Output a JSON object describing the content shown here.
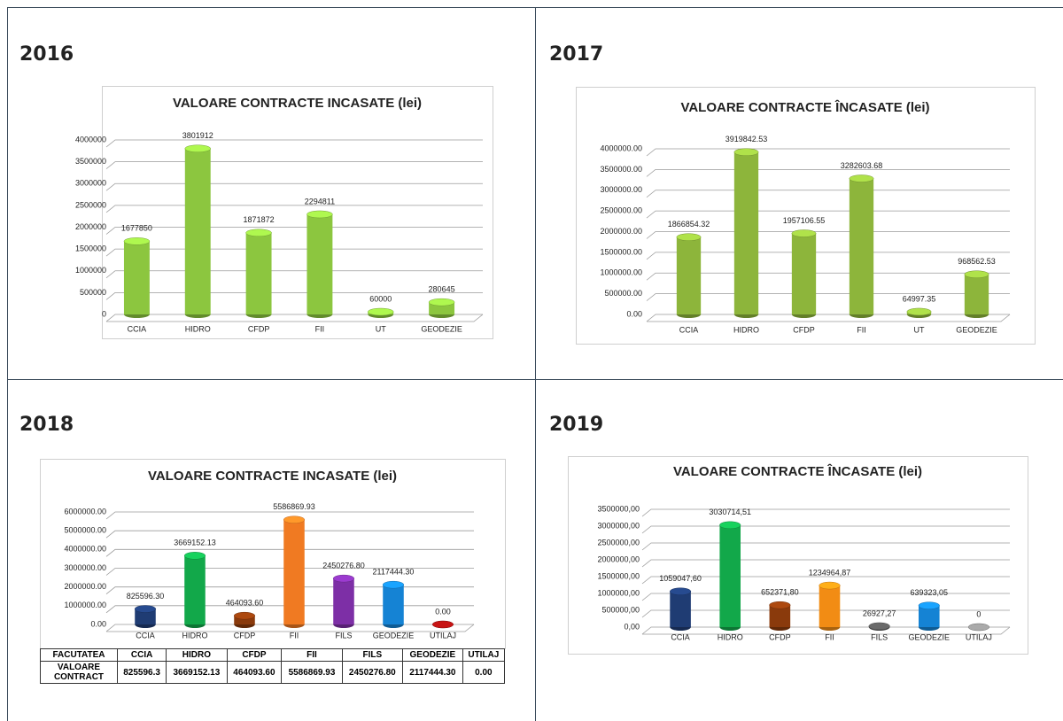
{
  "chart_data": [
    {
      "heading": "2016",
      "type": "bar",
      "title": "VALOARE CONTRACTE INCASATE (lei)",
      "categories": [
        "CCIA",
        "HIDRO",
        "CFDP",
        "FII",
        "UT",
        "GEODEZIE"
      ],
      "values": [
        1677850,
        3801912,
        1871872,
        2294811,
        60000,
        280645
      ],
      "color": "#8cc63f",
      "ylim": [
        0,
        4000000
      ],
      "yticks": [
        0,
        500000,
        1000000,
        1500000,
        2000000,
        2500000,
        3000000,
        3500000,
        4000000
      ],
      "grid": true
    },
    {
      "heading": "2017",
      "type": "bar",
      "title": "VALOARE CONTRACTE ÎNCASATE (lei)",
      "categories": [
        "CCIA",
        "HIDRO",
        "CFDP",
        "FII",
        "UT",
        "GEODEZIE"
      ],
      "values": [
        1866854.32,
        3919842.53,
        1957106.55,
        3282603.68,
        64997.35,
        968562.53
      ],
      "color": "#8db53b",
      "ylim": [
        0,
        4000000
      ],
      "yticks": [
        {
          "value": 0,
          "label": "0.00"
        },
        {
          "value": 500000,
          "label": "500000.00"
        },
        {
          "value": 1000000,
          "label": "1000000.00"
        },
        {
          "value": 1500000,
          "label": "1500000.00"
        },
        {
          "value": 2000000,
          "label": "2000000.00"
        },
        {
          "value": 2500000,
          "label": "2500000.00"
        },
        {
          "value": 3000000,
          "label": "3000000.00"
        },
        {
          "value": 3500000,
          "label": "3500000.00"
        },
        {
          "value": 4000000,
          "label": "4000000.00"
        }
      ],
      "grid": true
    },
    {
      "heading": "2018",
      "type": "bar",
      "title": "VALOARE CONTRACTE INCASATE (lei)",
      "categories": [
        "CCIA",
        "HIDRO",
        "CFDP",
        "FII",
        "FILS",
        "GEODEZIE",
        "UTILAJ"
      ],
      "values": [
        825596.3,
        3669152.13,
        464093.6,
        5586869.93,
        2450276.8,
        2117444.3,
        0
      ],
      "value_labels": [
        "825596.30",
        "3669152.13",
        "464093.60",
        "5586869.93",
        "2450276.80",
        "2117444.30",
        "0.00"
      ],
      "colors": [
        "#1f3c73",
        "#12a84a",
        "#8a3a0c",
        "#f07a22",
        "#7d2fa6",
        "#1583d4",
        "#a01010"
      ],
      "ylim": [
        0,
        6000000
      ],
      "yticks": [
        {
          "value": 0,
          "label": "0.00"
        },
        {
          "value": 1000000,
          "label": "1000000.00"
        },
        {
          "value": 2000000,
          "label": "2000000.00"
        },
        {
          "value": 3000000,
          "label": "3000000.00"
        },
        {
          "value": 4000000,
          "label": "4000000.00"
        },
        {
          "value": 5000000,
          "label": "5000000.00"
        },
        {
          "value": 6000000,
          "label": "6000000.00"
        }
      ],
      "grid": true,
      "table": {
        "header": [
          "FACUTATEA",
          "CCIA",
          "HIDRO",
          "CFDP",
          "FII",
          "FILS",
          "GEODEZIE",
          "UTILAJ"
        ],
        "rows": [
          [
            "VALOARE CONTRACT",
            "825596.3",
            "3669152.13",
            "464093.60",
            "5586869.93",
            "2450276.80",
            "2117444.30",
            "0.00"
          ]
        ]
      }
    },
    {
      "heading": "2019",
      "type": "bar",
      "title": "VALOARE CONTRACTE ÎNCASATE (lei)",
      "categories": [
        "CCIA",
        "HIDRO",
        "CFDP",
        "FII",
        "FILS",
        "GEODEZIE",
        "UTILAJ"
      ],
      "values": [
        1059047.6,
        3030714.51,
        652371.8,
        1234964.87,
        26927.27,
        639323.05,
        0
      ],
      "value_labels": [
        "1059047,60",
        "3030714,51",
        "652371,80",
        "1234964,87",
        "26927,27",
        "639323,05",
        "0"
      ],
      "colors": [
        "#1f3c73",
        "#12a84a",
        "#8a3a0c",
        "#f28c14",
        "#555555",
        "#1583d4",
        "#888888"
      ],
      "ylim": [
        0,
        3500000
      ],
      "yticks": [
        {
          "value": 0,
          "label": "0,00"
        },
        {
          "value": 500000,
          "label": "500000,00"
        },
        {
          "value": 1000000,
          "label": "1000000,00"
        },
        {
          "value": 1500000,
          "label": "1500000,00"
        },
        {
          "value": 2000000,
          "label": "2000000,00"
        },
        {
          "value": 2500000,
          "label": "2500000,00"
        },
        {
          "value": 3000000,
          "label": "3000000,00"
        },
        {
          "value": 3500000,
          "label": "3500000,00"
        }
      ],
      "grid": true
    }
  ]
}
